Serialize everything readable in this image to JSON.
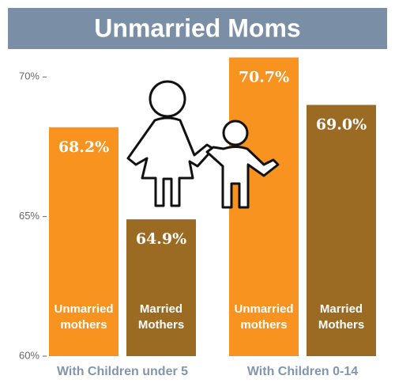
{
  "chart_data": {
    "type": "bar",
    "title": "Unmarried Moms",
    "categories": [
      "With Children under 5",
      "With Children 0-14"
    ],
    "series": [
      {
        "name": "Unmarried mothers",
        "color": "#f7931e",
        "values": [
          68.2,
          70.7
        ],
        "value_labels": [
          "68.2%",
          "70.7%"
        ]
      },
      {
        "name": "Married Mothers",
        "color": "#9b6a23",
        "values": [
          64.9,
          69.0
        ],
        "value_labels": [
          "64.9%",
          "69.0%"
        ]
      }
    ],
    "ylim": [
      60,
      71
    ],
    "yticks": [
      {
        "value": 60,
        "label": "60%"
      },
      {
        "value": 65,
        "label": "65%"
      },
      {
        "value": 70,
        "label": "70%"
      }
    ]
  }
}
